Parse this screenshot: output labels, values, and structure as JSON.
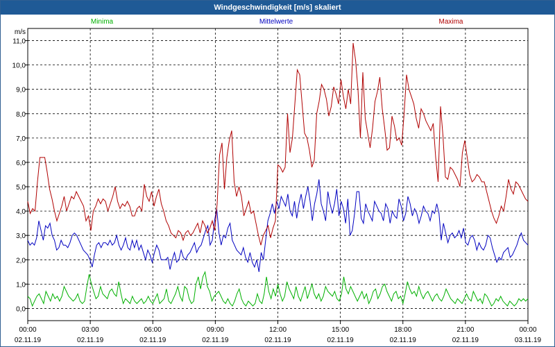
{
  "window": {
    "title": "Windgeschwindigkeit [m/s] skaliert"
  },
  "chart_data": {
    "type": "line",
    "title": "Windgeschwindigkeit [m/s] skaliert",
    "ylabel": "m/s",
    "xlabel": "",
    "ylim": [
      -0.5,
      11.5
    ],
    "xlim": [
      0,
      24
    ],
    "grid": true,
    "legend_placement": "top",
    "y_ticks": [
      "0,0",
      "1,0",
      "2,0",
      "3,0",
      "4,0",
      "5,0",
      "6,0",
      "7,0",
      "8,0",
      "9,0",
      "10,0",
      "11,0"
    ],
    "x_ticks": [
      {
        "time": "00:00",
        "date": "02.11.19"
      },
      {
        "time": "03:00",
        "date": "02.11.19"
      },
      {
        "time": "06:00",
        "date": "02.11.19"
      },
      {
        "time": "09:00",
        "date": "02.11.19"
      },
      {
        "time": "12:00",
        "date": "02.11.19"
      },
      {
        "time": "15:00",
        "date": "02.11.19"
      },
      {
        "time": "18:00",
        "date": "02.11.19"
      },
      {
        "time": "21:00",
        "date": "02.11.19"
      },
      {
        "time": "00:00",
        "date": "03.11.19"
      }
    ],
    "series": [
      {
        "name": "Minima",
        "color": "#00b000",
        "values": [
          0.5,
          0.4,
          0.1,
          0.3,
          0.5,
          0.6,
          0.4,
          0.2,
          0.7,
          0.5,
          0.3,
          0.6,
          0.4,
          0.5,
          0.3,
          0.5,
          0.9,
          0.7,
          0.5,
          0.4,
          0.3,
          0.4,
          0.6,
          0.3,
          0.2,
          0.3,
          0.9,
          1.4,
          1.0,
          0.7,
          0.4,
          0.5,
          0.9,
          0.6,
          0.5,
          0.4,
          0.7,
          0.8,
          0.6,
          0.5,
          1.1,
          0.6,
          0.2,
          0.4,
          0.3,
          0.2,
          0.5,
          0.3,
          0.2,
          0.3,
          0.4,
          0.2,
          0.3,
          0.5,
          0.3,
          0.2,
          0.4,
          0.6,
          0.2,
          0.3,
          0.4,
          0.8,
          0.3,
          0.2,
          0.4,
          0.6,
          0.9,
          0.5,
          0.3,
          0.9,
          0.8,
          0.4,
          0.2,
          0.3,
          1.0,
          1.3,
          0.8,
          1.3,
          1.5,
          0.9,
          0.7,
          0.3,
          0.5,
          0.6,
          0.7,
          0.5,
          0.3,
          0.2,
          0.4,
          0.2,
          0.1,
          0.3,
          0.6,
          0.8,
          0.4,
          0.2,
          0.1,
          0.3,
          0.2,
          0.1,
          0.2,
          0.6,
          0.3,
          0.2,
          0.6,
          1.3,
          0.7,
          0.4,
          0.8,
          0.5,
          1.0,
          0.6,
          0.3,
          0.5,
          1.1,
          0.8,
          0.6,
          0.4,
          0.9,
          0.5,
          0.3,
          0.6,
          0.9,
          0.4,
          0.7,
          1.0,
          0.6,
          0.4,
          0.6,
          0.3,
          0.5,
          0.9,
          0.7,
          0.6,
          0.5,
          0.7,
          0.4,
          0.3,
          0.6,
          1.3,
          0.8,
          0.6,
          0.9,
          0.7,
          0.5,
          0.3,
          0.5,
          0.7,
          0.4,
          0.6,
          0.2,
          0.4,
          0.7,
          0.8,
          0.4,
          0.6,
          0.9,
          1.0,
          0.7,
          0.5,
          0.3,
          0.6,
          0.7,
          0.4,
          0.5,
          0.2,
          0.6,
          1.1,
          0.8,
          0.6,
          0.7,
          0.5,
          0.9,
          0.6,
          0.4,
          0.6,
          0.7,
          0.5,
          0.3,
          0.5,
          0.6,
          0.4,
          0.3,
          0.5,
          0.8,
          0.6,
          0.4,
          0.3,
          0.2,
          0.4,
          0.3,
          0.2,
          0.4,
          0.6,
          0.4,
          0.3,
          0.7,
          0.5,
          0.3,
          0.4,
          0.2,
          0.6,
          0.5,
          0.3,
          0.1,
          0.2,
          0.4,
          0.3,
          0.5,
          0.3,
          0.2,
          0.1,
          0.3,
          0.2,
          0.1,
          0.2,
          0.4,
          0.3,
          0.4,
          0.3,
          0.4
        ]
      },
      {
        "name": "Mittelwerte",
        "color": "#0000c0",
        "values": [
          2.8,
          2.6,
          2.7,
          2.6,
          2.9,
          3.6,
          3.2,
          2.8,
          3.4,
          3.3,
          3.5,
          3.0,
          2.8,
          2.4,
          2.5,
          2.8,
          2.6,
          2.6,
          2.5,
          2.7,
          3.0,
          3.1,
          3.0,
          2.8,
          2.6,
          2.4,
          2.3,
          2.2,
          2.0,
          1.7,
          2.2,
          2.6,
          2.7,
          2.5,
          2.7,
          2.7,
          2.6,
          2.8,
          2.6,
          2.7,
          3.0,
          2.6,
          2.4,
          2.6,
          2.9,
          2.5,
          2.4,
          2.8,
          2.5,
          2.8,
          2.4,
          2.6,
          2.3,
          2.0,
          2.4,
          2.2,
          1.9,
          2.3,
          2.6,
          2.4,
          2.0,
          2.0,
          2.0,
          2.1,
          1.6,
          2.0,
          2.3,
          1.9,
          2.0,
          2.4,
          2.1,
          2.0,
          2.2,
          2.3,
          2.5,
          2.7,
          2.3,
          2.5,
          2.6,
          2.9,
          3.2,
          3.4,
          2.6,
          2.8,
          3.6,
          4.1,
          3.1,
          2.6,
          3.0,
          2.9,
          3.3,
          3.5,
          2.8,
          2.6,
          2.4,
          2.3,
          2.2,
          2.5,
          2.1,
          1.9,
          2.3,
          1.9,
          1.7,
          2.0,
          1.5,
          2.3,
          2.0,
          2.8,
          3.6,
          3.9,
          4.3,
          3.9,
          4.4,
          4.1,
          4.6,
          4.4,
          4.2,
          4.7,
          4.0,
          3.8,
          4.4,
          3.7,
          4.3,
          4.7,
          4.1,
          4.6,
          5.0,
          4.4,
          3.6,
          4.3,
          4.7,
          5.3,
          4.3,
          4.0,
          3.6,
          4.8,
          4.3,
          3.9,
          4.3,
          4.9,
          3.8,
          4.4,
          4.1,
          3.5,
          4.5,
          3.0,
          3.2,
          3.9,
          4.8,
          4.8,
          3.7,
          3.5,
          4.3,
          4.0,
          3.8,
          3.6,
          4.4,
          4.2,
          4.0,
          3.9,
          3.6,
          4.3,
          4.1,
          3.5,
          4.0,
          3.8,
          3.7,
          4.5,
          4.2,
          3.6,
          3.9,
          4.6,
          4.3,
          3.8,
          4.1,
          3.9,
          3.5,
          3.8,
          4.2,
          4.0,
          3.9,
          3.6,
          4.0,
          3.9,
          4.3,
          3.9,
          2.8,
          3.5,
          3.1,
          2.7,
          3.0,
          3.1,
          2.9,
          3.0,
          3.2,
          2.9,
          3.3,
          2.7,
          2.6,
          2.9,
          3.0,
          2.8,
          2.4,
          2.7,
          2.5,
          2.4,
          2.6,
          3.0,
          2.9,
          2.5,
          2.2,
          1.9,
          2.1,
          2.0,
          2.3,
          2.4,
          2.5,
          2.1,
          2.2,
          2.4,
          2.6,
          2.9,
          3.1,
          2.8,
          2.7,
          2.6
        ]
      },
      {
        "name": "Maxima",
        "color": "#b00000",
        "values": [
          4.4,
          3.9,
          4.1,
          4.0,
          5.2,
          6.2,
          6.2,
          6.2,
          5.6,
          4.9,
          4.5,
          4.0,
          3.6,
          3.9,
          4.2,
          4.6,
          4.0,
          4.3,
          4.6,
          4.5,
          4.8,
          4.6,
          4.4,
          4.2,
          3.6,
          3.8,
          3.2,
          4.0,
          4.2,
          4.5,
          4.3,
          4.5,
          4.4,
          4.0,
          4.3,
          4.6,
          5.0,
          4.4,
          4.1,
          4.3,
          4.2,
          4.4,
          4.2,
          3.8,
          3.8,
          4.1,
          4.2,
          4.0,
          5.1,
          4.6,
          4.4,
          4.8,
          4.2,
          4.6,
          4.9,
          4.3,
          4.0,
          3.6,
          3.4,
          3.1,
          3.0,
          2.9,
          3.2,
          3.1,
          2.8,
          3.1,
          3.2,
          3.0,
          3.1,
          3.3,
          3.5,
          3.1,
          3.6,
          3.4,
          3.1,
          3.3,
          3.6,
          3.2,
          4.3,
          6.3,
          6.8,
          4.9,
          6.2,
          6.9,
          7.3,
          5.2,
          4.6,
          5.0,
          4.6,
          3.8,
          4.1,
          4.4,
          3.9,
          4.0,
          3.5,
          3.0,
          2.6,
          3.0,
          3.2,
          3.4,
          2.9,
          3.3,
          3.6,
          5.9,
          5.8,
          5.6,
          5.8,
          8.0,
          6.4,
          7.0,
          8.4,
          9.8,
          9.6,
          8.4,
          7.2,
          7.0,
          6.5,
          5.8,
          6.1,
          8.0,
          8.5,
          9.2,
          9.0,
          8.6,
          7.9,
          8.3,
          9.1,
          8.8,
          8.4,
          9.4,
          8.7,
          8.2,
          9.0,
          8.4,
          10.9,
          10.2,
          9.0,
          7.0,
          9.7,
          7.8,
          7.2,
          6.6,
          7.4,
          8.5,
          8.9,
          9.5,
          8.2,
          7.4,
          6.5,
          6.6,
          7.9,
          7.5,
          6.9,
          7.0,
          6.7,
          8.0,
          9.6,
          9.0,
          8.7,
          8.4,
          7.8,
          7.4,
          8.2,
          8.0,
          7.7,
          7.5,
          7.3,
          7.6,
          6.2,
          5.2,
          8.3,
          7.1,
          5.4,
          5.3,
          5.8,
          5.7,
          5.5,
          5.3,
          5.0,
          6.4,
          6.9,
          6.2,
          5.5,
          5.2,
          5.3,
          5.5,
          5.4,
          5.2,
          5.2,
          4.8,
          4.4,
          4.0,
          3.7,
          3.5,
          3.8,
          4.2,
          4.0,
          4.6,
          5.3,
          4.9,
          4.7,
          5.2,
          5.1,
          4.9,
          4.7,
          4.5,
          4.4
        ]
      }
    ]
  }
}
